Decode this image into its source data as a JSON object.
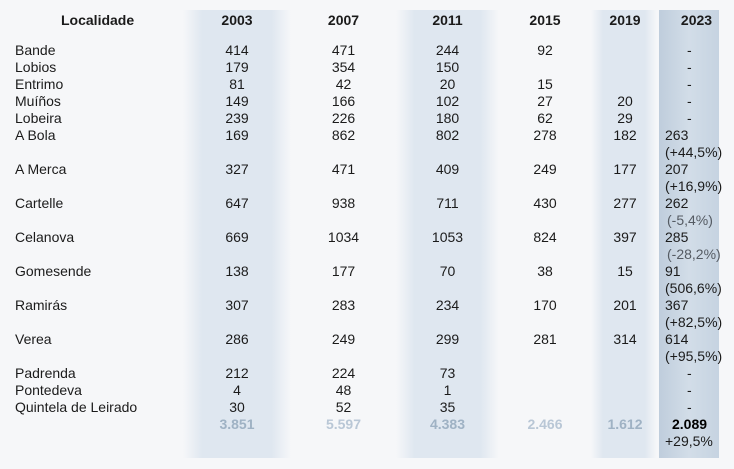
{
  "headers": [
    "Localidade",
    "2003",
    "2007",
    "2011",
    "2015",
    "2019",
    "2023"
  ],
  "rows": [
    {
      "name": "Bande",
      "v2003": "414",
      "v2007": "471",
      "v2011": "244",
      "v2015": "92",
      "v2019": "",
      "v2023": "-",
      "pct": ""
    },
    {
      "name": "Lobios",
      "v2003": "179",
      "v2007": "354",
      "v2011": "150",
      "v2015": "",
      "v2019": "",
      "v2023": "-",
      "pct": ""
    },
    {
      "name": "Entrimo",
      "v2003": "81",
      "v2007": "42",
      "v2011": "20",
      "v2015": "15",
      "v2019": "",
      "v2023": "-",
      "pct": ""
    },
    {
      "name": "Muíños",
      "v2003": "149",
      "v2007": "166",
      "v2011": "102",
      "v2015": "27",
      "v2019": "20",
      "v2023": "-",
      "pct": ""
    },
    {
      "name": "Lobeira",
      "v2003": "239",
      "v2007": "226",
      "v2011": "180",
      "v2015": "62",
      "v2019": "29",
      "v2023": "-",
      "pct": ""
    },
    {
      "name": "A Bola",
      "v2003": "169",
      "v2007": "862",
      "v2011": "802",
      "v2015": "278",
      "v2019": "182",
      "v2023": "263",
      "pct": "(+44,5%)"
    },
    {
      "name": "A Merca",
      "v2003": "327",
      "v2007": "471",
      "v2011": "409",
      "v2015": "249",
      "v2019": "177",
      "v2023": "207",
      "pct": "(+16,9%)"
    },
    {
      "name": "Cartelle",
      "v2003": "647",
      "v2007": "938",
      "v2011": "711",
      "v2015": "430",
      "v2019": "277",
      "v2023": "262",
      "pct": "(-5,4%)"
    },
    {
      "name": "Celanova",
      "v2003": "669",
      "v2007": "1034",
      "v2011": "1053",
      "v2015": "824",
      "v2019": "397",
      "v2023": "285",
      "pct": "(-28,2%)"
    },
    {
      "name": "Gomesende",
      "v2003": "138",
      "v2007": "177",
      "v2011": "70",
      "v2015": "38",
      "v2019": "15",
      "v2023": "91",
      "pct": "(506,6%)"
    },
    {
      "name": "Ramirás",
      "v2003": "307",
      "v2007": "283",
      "v2011": "234",
      "v2015": "170",
      "v2019": "201",
      "v2023": "367",
      "pct": "(+82,5%)"
    },
    {
      "name": "Verea",
      "v2003": "286",
      "v2007": "249",
      "v2011": "299",
      "v2015": "281",
      "v2019": "314",
      "v2023": "614",
      "pct": "(+95,5%)"
    },
    {
      "name": "Padrenda",
      "v2003": "212",
      "v2007": "224",
      "v2011": "73",
      "v2015": "",
      "v2019": "",
      "v2023": "-",
      "pct": ""
    },
    {
      "name": "Pontedeva",
      "v2003": "4",
      "v2007": "48",
      "v2011": "1",
      "v2015": "",
      "v2019": "",
      "v2023": "-",
      "pct": ""
    },
    {
      "name": "Quintela de Leirado",
      "v2003": "30",
      "v2007": "52",
      "v2011": "35",
      "v2015": "",
      "v2019": "",
      "v2023": "-",
      "pct": ""
    }
  ],
  "totals": {
    "v2003": "3.851",
    "v2007": "5.597",
    "v2011": "4.383",
    "v2015": "2.466",
    "v2019": "1.612",
    "v2023": "2.089",
    "pct": "+29,5%"
  },
  "colors": {
    "band": "#dfe7f0",
    "band_2023": "#c6d3e1",
    "faint_total": "#b9c7d6",
    "background": "#f6f7f9"
  }
}
